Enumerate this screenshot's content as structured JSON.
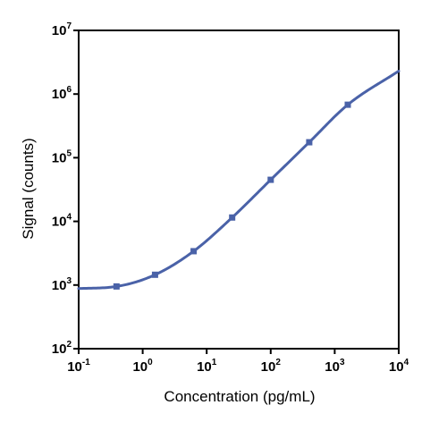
{
  "chart_data": {
    "type": "line",
    "title": "",
    "xlabel": "Concentration (pg/mL)",
    "ylabel": "Signal (counts)",
    "x_scale": "log",
    "y_scale": "log",
    "xlim": [
      0.1,
      10000
    ],
    "ylim": [
      100,
      10000000
    ],
    "grid": false,
    "legend": "none",
    "x_ticks": [
      {
        "base": "10",
        "exp": "-1",
        "value": 0.1
      },
      {
        "base": "10",
        "exp": "0",
        "value": 1
      },
      {
        "base": "10",
        "exp": "1",
        "value": 10
      },
      {
        "base": "10",
        "exp": "2",
        "value": 100
      },
      {
        "base": "10",
        "exp": "3",
        "value": 1000
      },
      {
        "base": "10",
        "exp": "4",
        "value": 10000
      }
    ],
    "y_ticks": [
      {
        "base": "10",
        "exp": "2",
        "value": 100
      },
      {
        "base": "10",
        "exp": "3",
        "value": 1000
      },
      {
        "base": "10",
        "exp": "4",
        "value": 10000
      },
      {
        "base": "10",
        "exp": "5",
        "value": 100000
      },
      {
        "base": "10",
        "exp": "6",
        "value": 1000000
      },
      {
        "base": "10",
        "exp": "7",
        "value": 10000000
      }
    ],
    "series": [
      {
        "color": "#4a62a8",
        "marker": "square",
        "points": [
          {
            "x": 0.39,
            "y": 950
          },
          {
            "x": 1.56,
            "y": 1450
          },
          {
            "x": 6.25,
            "y": 3400
          },
          {
            "x": 25,
            "y": 11500
          },
          {
            "x": 100,
            "y": 45000
          },
          {
            "x": 400,
            "y": 175000
          },
          {
            "x": 1600,
            "y": 680000
          }
        ],
        "fit_curve": [
          {
            "x": 0.1,
            "y": 880
          },
          {
            "x": 0.39,
            "y": 950
          },
          {
            "x": 1.56,
            "y": 1450
          },
          {
            "x": 6.25,
            "y": 3400
          },
          {
            "x": 25,
            "y": 11500
          },
          {
            "x": 100,
            "y": 45000
          },
          {
            "x": 400,
            "y": 175000
          },
          {
            "x": 1600,
            "y": 680000
          },
          {
            "x": 10000,
            "y": 2300000
          }
        ]
      }
    ]
  }
}
